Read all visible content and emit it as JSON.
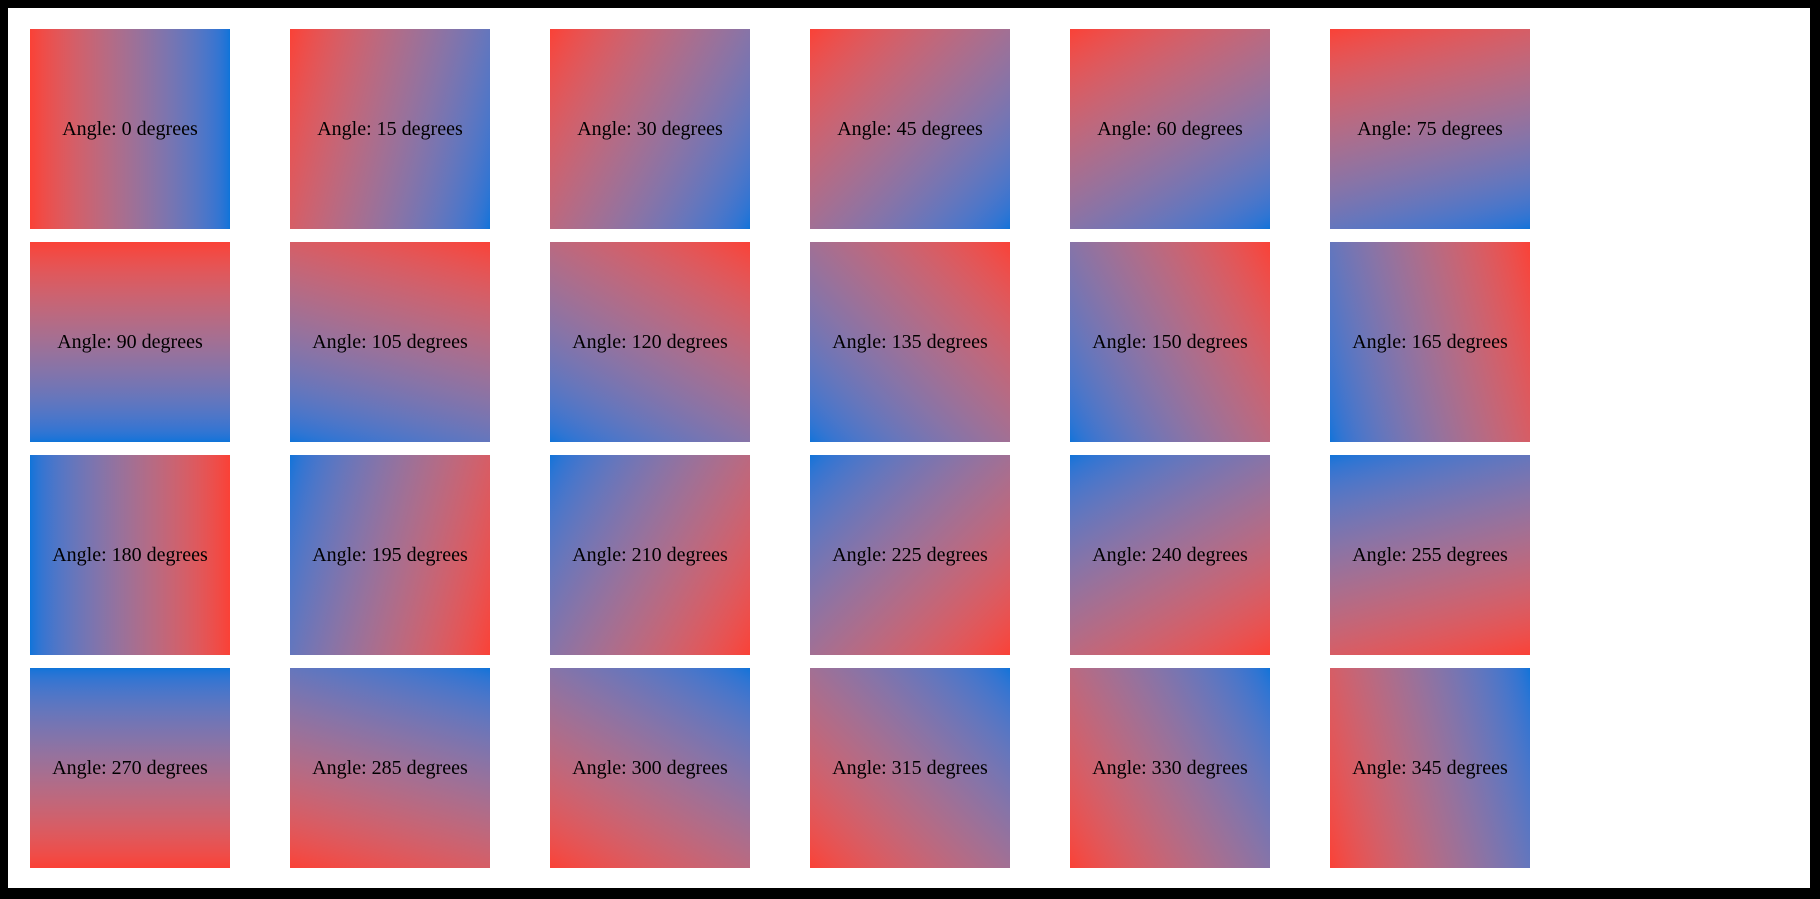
{
  "figure": {
    "background_color": "#ffffff",
    "frame_color": "#000000",
    "text_color": "#000000"
  },
  "gradient": {
    "start_color": "#fa4136",
    "end_color": "#0d74d9"
  },
  "tiles": [
    {
      "angle": 0,
      "label": "Angle: 0 degrees"
    },
    {
      "angle": 15,
      "label": "Angle: 15 degrees"
    },
    {
      "angle": 30,
      "label": "Angle: 30 degrees"
    },
    {
      "angle": 45,
      "label": "Angle: 45 degrees"
    },
    {
      "angle": 60,
      "label": "Angle: 60 degrees"
    },
    {
      "angle": 75,
      "label": "Angle: 75 degrees"
    },
    {
      "angle": 90,
      "label": "Angle: 90 degrees"
    },
    {
      "angle": 105,
      "label": "Angle: 105 degrees"
    },
    {
      "angle": 120,
      "label": "Angle: 120 degrees"
    },
    {
      "angle": 135,
      "label": "Angle: 135 degrees"
    },
    {
      "angle": 150,
      "label": "Angle: 150 degrees"
    },
    {
      "angle": 165,
      "label": "Angle: 165 degrees"
    },
    {
      "angle": 180,
      "label": "Angle: 180 degrees"
    },
    {
      "angle": 195,
      "label": "Angle: 195 degrees"
    },
    {
      "angle": 210,
      "label": "Angle: 210 degrees"
    },
    {
      "angle": 225,
      "label": "Angle: 225 degrees"
    },
    {
      "angle": 240,
      "label": "Angle: 240 degrees"
    },
    {
      "angle": 255,
      "label": "Angle: 255 degrees"
    },
    {
      "angle": 270,
      "label": "Angle: 270 degrees"
    },
    {
      "angle": 285,
      "label": "Angle: 285 degrees"
    },
    {
      "angle": 300,
      "label": "Angle: 300 degrees"
    },
    {
      "angle": 315,
      "label": "Angle: 315 degrees"
    },
    {
      "angle": 330,
      "label": "Angle: 330 degrees"
    },
    {
      "angle": 345,
      "label": "Angle: 345 degrees"
    }
  ]
}
